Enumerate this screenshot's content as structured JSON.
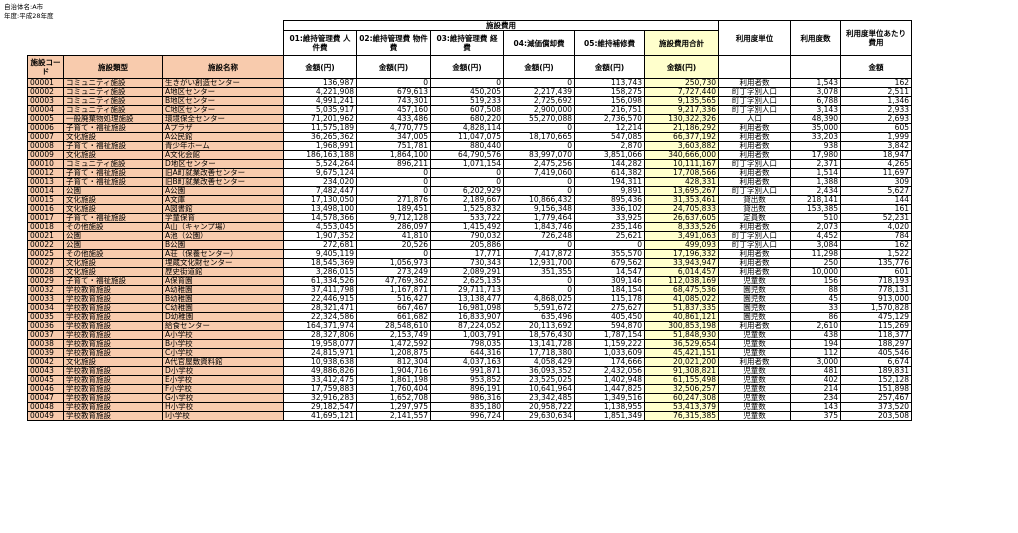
{
  "meta": [
    "自治体名:A市",
    "年度:平成28年度"
  ],
  "header": {
    "group": "施設費用",
    "cols": [
      "01:維持管理費 人件費",
      "02:維持管理費 物件費",
      "03:維持管理費 経費",
      "04:減価償却費",
      "05:維持補修費",
      "施設費用合計"
    ],
    "unit": "利用度単位",
    "count": "利用度数",
    "per": "利用度単位あたり費用",
    "code": "施設コード",
    "type": "施設類型",
    "name": "施設名称",
    "yen": "金額(円)",
    "amount": "金額"
  },
  "rows": [
    [
      "00001",
      "コミュニティ施設",
      "生きがい創造センター",
      "136,987",
      "0",
      "0",
      "0",
      "113,743",
      "250,730",
      "利用者数",
      "1,543",
      "162"
    ],
    [
      "00002",
      "コミュニティ施設",
      "A地区センター",
      "4,221,908",
      "679,613",
      "450,205",
      "2,217,439",
      "158,275",
      "7,727,440",
      "町丁字別人口",
      "3,078",
      "2,511"
    ],
    [
      "00003",
      "コミュニティ施設",
      "B地区センター",
      "4,991,241",
      "743,301",
      "519,233",
      "2,725,692",
      "156,098",
      "9,135,565",
      "町丁字別人口",
      "6,788",
      "1,346"
    ],
    [
      "00004",
      "コミュニティ施設",
      "C地区センター",
      "5,035,917",
      "457,160",
      "607,508",
      "2,900,000",
      "216,751",
      "9,217,336",
      "町丁字別人口",
      "3,143",
      "2,933"
    ],
    [
      "00005",
      "一般廃棄物処理施設",
      "環境保全センター",
      "71,201,962",
      "433,486",
      "680,220",
      "55,270,088",
      "2,736,570",
      "130,322,326",
      "人口",
      "48,390",
      "2,693"
    ],
    [
      "00006",
      "子育て・福祉施設",
      "Aプラザ",
      "11,575,189",
      "4,770,775",
      "4,828,114",
      "0",
      "12,214",
      "21,186,292",
      "利用者数",
      "35,000",
      "605"
    ],
    [
      "00007",
      "文化施設",
      "A公民館",
      "36,265,362",
      "347,005",
      "11,047,075",
      "18,170,665",
      "547,085",
      "66,377,192",
      "利用者数",
      "33,203",
      "1,999"
    ],
    [
      "00008",
      "子育て・福祉施設",
      "青少年ホーム",
      "1,968,991",
      "751,781",
      "880,440",
      "0",
      "2,870",
      "3,603,882",
      "利用者数",
      "938",
      "3,842"
    ],
    [
      "00009",
      "文化施設",
      "A文化会館",
      "186,163,188",
      "1,864,100",
      "64,790,576",
      "83,997,070",
      "3,851,066",
      "340,666,000",
      "利用者数",
      "17,980",
      "18,947"
    ],
    [
      "00010",
      "コミュニティ施設",
      "D地区センター",
      "5,524,264",
      "896,211",
      "1,071,154",
      "2,475,256",
      "144,282",
      "10,111,167",
      "町丁字別人口",
      "2,371",
      "4,265"
    ],
    [
      "00012",
      "子育て・福祉施設",
      "旧A町就業改善センター",
      "9,675,124",
      "0",
      "0",
      "7,419,060",
      "614,382",
      "17,708,566",
      "利用者数",
      "1,514",
      "11,697"
    ],
    [
      "00013",
      "子育て・福祉施設",
      "旧B町就業改善センター",
      "234,020",
      "0",
      "0",
      "0",
      "194,311",
      "428,331",
      "利用者数",
      "1,388",
      "309"
    ],
    [
      "00014",
      "公園",
      "A公園",
      "7,482,447",
      "0",
      "6,202,929",
      "0",
      "9,891",
      "13,695,267",
      "町丁字別人口",
      "2,434",
      "5,627"
    ],
    [
      "00015",
      "文化施設",
      "A文庫",
      "17,130,050",
      "271,876",
      "2,189,667",
      "10,866,432",
      "895,436",
      "31,353,461",
      "貸出数",
      "218,141",
      "144"
    ],
    [
      "00016",
      "文化施設",
      "A図書館",
      "13,498,100",
      "189,451",
      "1,525,832",
      "9,156,348",
      "336,102",
      "24,705,833",
      "貸出数",
      "153,385",
      "161"
    ],
    [
      "00017",
      "子育て・福祉施設",
      "学童保育",
      "14,578,366",
      "9,712,128",
      "533,722",
      "1,779,464",
      "33,925",
      "26,637,605",
      "定員数",
      "510",
      "52,231"
    ],
    [
      "00018",
      "その他施設",
      "A山（キャンプ場）",
      "4,553,045",
      "286,097",
      "1,415,492",
      "1,843,746",
      "235,146",
      "8,333,526",
      "利用者数",
      "2,073",
      "4,020"
    ],
    [
      "00021",
      "公園",
      "A池（公園）",
      "1,907,352",
      "41,810",
      "790,032",
      "726,248",
      "25,621",
      "3,491,063",
      "町丁字別人口",
      "4,452",
      "784"
    ],
    [
      "00022",
      "公園",
      "B公園",
      "272,681",
      "20,526",
      "205,886",
      "0",
      "0",
      "499,093",
      "町丁字別人口",
      "3,084",
      "162"
    ],
    [
      "00025",
      "その他施設",
      "A荘（保養センター）",
      "9,405,119",
      "0",
      "17,771",
      "7,417,872",
      "355,570",
      "17,196,332",
      "利用者数",
      "11,298",
      "1,522"
    ],
    [
      "00027",
      "文化施設",
      "埋蔵文化財センター",
      "18,545,369",
      "1,056,973",
      "730,343",
      "12,931,700",
      "679,562",
      "33,943,947",
      "利用者数",
      "250",
      "135,776"
    ],
    [
      "00028",
      "文化施設",
      "歴史街道館",
      "3,286,015",
      "273,249",
      "2,089,291",
      "351,355",
      "14,547",
      "6,014,457",
      "利用者数",
      "10,000",
      "601"
    ],
    [
      "00029",
      "子育て・福祉施設",
      "A保育園",
      "61,334,526",
      "47,769,362",
      "2,625,135",
      "0",
      "309,146",
      "112,038,169",
      "児童数",
      "156",
      "718,193"
    ],
    [
      "00032",
      "学校教育施設",
      "A幼稚園",
      "37,411,798",
      "1,167,871",
      "29,711,713",
      "0",
      "184,154",
      "68,475,536",
      "園児数",
      "88",
      "778,131"
    ],
    [
      "00033",
      "学校教育施設",
      "B幼稚園",
      "22,446,915",
      "516,427",
      "13,138,477",
      "4,868,025",
      "115,178",
      "41,085,022",
      "園児数",
      "45",
      "913,000"
    ],
    [
      "00034",
      "学校教育施設",
      "C幼稚園",
      "28,321,471",
      "667,467",
      "16,981,098",
      "5,591,672",
      "275,627",
      "51,837,335",
      "園児数",
      "33",
      "1,570,828"
    ],
    [
      "00035",
      "学校教育施設",
      "D幼稚園",
      "22,324,586",
      "661,682",
      "16,833,907",
      "635,496",
      "405,450",
      "40,861,121",
      "園児数",
      "86",
      "475,129"
    ],
    [
      "00036",
      "学校教育施設",
      "給食センター",
      "164,371,974",
      "28,548,610",
      "87,224,052",
      "20,113,692",
      "594,870",
      "300,853,198",
      "利用者数",
      "2,610",
      "115,269"
    ],
    [
      "00037",
      "学校教育施設",
      "A小学校",
      "28,327,806",
      "2,153,749",
      "1,003,791",
      "18,576,430",
      "1,787,154",
      "51,848,930",
      "児童数",
      "438",
      "118,377"
    ],
    [
      "00038",
      "学校教育施設",
      "B小学校",
      "19,958,077",
      "1,472,592",
      "798,035",
      "13,141,728",
      "1,159,222",
      "36,529,654",
      "児童数",
      "194",
      "188,297"
    ],
    [
      "00039",
      "学校教育施設",
      "C小学校",
      "24,815,971",
      "1,208,875",
      "644,316",
      "17,718,380",
      "1,033,609",
      "45,421,151",
      "児童数",
      "112",
      "405,546"
    ],
    [
      "00042",
      "文化施設",
      "A代官屋敷資料館",
      "10,938,638",
      "812,304",
      "4,037,163",
      "4,058,429",
      "174,666",
      "20,021,200",
      "利用者数",
      "3,000",
      "6,674"
    ],
    [
      "00043",
      "学校教育施設",
      "D小学校",
      "49,886,826",
      "1,904,716",
      "991,871",
      "36,093,352",
      "2,432,056",
      "91,308,821",
      "児童数",
      "481",
      "189,831"
    ],
    [
      "00045",
      "学校教育施設",
      "E小学校",
      "33,412,475",
      "1,861,198",
      "953,852",
      "23,525,025",
      "1,402,948",
      "61,155,498",
      "児童数",
      "402",
      "152,128"
    ],
    [
      "00046",
      "学校教育施設",
      "F小学校",
      "17,759,883",
      "1,760,404",
      "896,191",
      "10,641,964",
      "1,447,825",
      "32,506,257",
      "児童数",
      "214",
      "151,898"
    ],
    [
      "00047",
      "学校教育施設",
      "G小学校",
      "32,916,283",
      "1,652,708",
      "986,316",
      "23,342,485",
      "1,349,516",
      "60,247,308",
      "児童数",
      "234",
      "257,467"
    ],
    [
      "00048",
      "学校教育施設",
      "H小学校",
      "29,182,547",
      "1,297,975",
      "835,180",
      "20,958,722",
      "1,138,955",
      "53,413,379",
      "児童数",
      "143",
      "373,520"
    ],
    [
      "00049",
      "学校教育施設",
      "I小学校",
      "41,695,121",
      "2,141,557",
      "996,724",
      "29,630,634",
      "1,851,349",
      "76,315,385",
      "児童数",
      "375",
      "203,508"
    ]
  ]
}
